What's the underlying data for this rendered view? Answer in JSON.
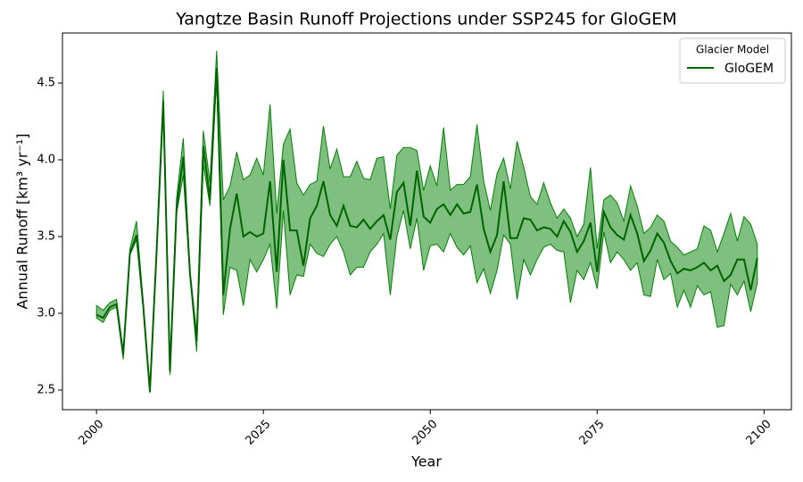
{
  "chart_data": {
    "type": "line",
    "title": "Yangtze Basin Runoff Projections under SSP245 for GloGEM",
    "x_label": "Year",
    "y_label": "Annual Runoff [km³ yr⁻¹]",
    "legend_title": "Glacier Model",
    "legend_position": "upper right",
    "xlim": [
      1994.9,
      2104.1
    ],
    "ylim": [
      2.372,
      4.826
    ],
    "xticks": [
      2000,
      2025,
      2050,
      2075,
      2100
    ],
    "yticks": [
      2.5,
      {
        "value": 3,
        "label": "3.0"
      },
      3.5,
      {
        "value": 4,
        "label": "4.0"
      },
      4.5
    ],
    "grid": false,
    "band_alpha": 0.5,
    "x": [
      2000,
      2001,
      2002,
      2003,
      2004,
      2005,
      2006,
      2007,
      2008,
      2009,
      2010,
      2011,
      2012,
      2013,
      2014,
      2015,
      2016,
      2017,
      2018,
      2019,
      2020,
      2021,
      2022,
      2023,
      2024,
      2025,
      2026,
      2027,
      2028,
      2029,
      2030,
      2031,
      2032,
      2033,
      2034,
      2035,
      2036,
      2037,
      2038,
      2039,
      2040,
      2041,
      2042,
      2043,
      2044,
      2045,
      2046,
      2047,
      2048,
      2049,
      2050,
      2051,
      2052,
      2053,
      2054,
      2055,
      2056,
      2057,
      2058,
      2059,
      2060,
      2061,
      2062,
      2063,
      2064,
      2065,
      2066,
      2067,
      2068,
      2069,
      2070,
      2071,
      2072,
      2073,
      2074,
      2075,
      2076,
      2077,
      2078,
      2079,
      2080,
      2081,
      2082,
      2083,
      2084,
      2085,
      2086,
      2087,
      2088,
      2089,
      2090,
      2091,
      2092,
      2093,
      2094,
      2095,
      2096,
      2097,
      2098,
      2099
    ],
    "series": [
      {
        "name": "GloGEM",
        "color": "#006400",
        "band_color": "#008000",
        "values": [
          2.99,
          2.97,
          3.04,
          3.06,
          2.73,
          3.39,
          3.51,
          3.05,
          2.49,
          3.4,
          4.38,
          2.62,
          3.68,
          4.02,
          3.26,
          2.82,
          4.09,
          3.74,
          4.6,
          3.12,
          3.55,
          3.78,
          3.5,
          3.53,
          3.5,
          3.52,
          3.86,
          3.27,
          4.0,
          3.54,
          3.54,
          3.31,
          3.62,
          3.7,
          3.86,
          3.64,
          3.57,
          3.7,
          3.57,
          3.56,
          3.61,
          3.55,
          3.6,
          3.64,
          3.48,
          3.79,
          3.85,
          3.57,
          3.93,
          3.63,
          3.59,
          3.68,
          3.71,
          3.64,
          3.71,
          3.65,
          3.66,
          3.84,
          3.55,
          3.4,
          3.51,
          3.86,
          3.49,
          3.49,
          3.62,
          3.61,
          3.54,
          3.56,
          3.55,
          3.5,
          3.6,
          3.53,
          3.4,
          3.47,
          3.59,
          3.27,
          3.66,
          3.56,
          3.51,
          3.48,
          3.64,
          3.52,
          3.34,
          3.41,
          3.52,
          3.46,
          3.34,
          3.26,
          3.29,
          3.28,
          3.3,
          3.33,
          3.28,
          3.31,
          3.21,
          3.25,
          3.35,
          3.35,
          3.15,
          3.36
        ],
        "lower": [
          2.97,
          2.94,
          3.02,
          3.04,
          2.7,
          3.38,
          3.48,
          3.03,
          2.48,
          3.38,
          4.34,
          2.6,
          3.65,
          3.9,
          3.25,
          2.75,
          3.97,
          3.7,
          4.55,
          2.99,
          3.3,
          3.28,
          3.05,
          3.35,
          3.27,
          3.35,
          3.45,
          3.03,
          3.67,
          3.12,
          3.25,
          3.24,
          3.45,
          3.39,
          3.37,
          3.45,
          3.5,
          3.4,
          3.25,
          3.3,
          3.3,
          3.4,
          3.45,
          3.52,
          3.12,
          3.5,
          3.67,
          3.42,
          3.62,
          3.28,
          3.44,
          3.45,
          3.4,
          3.52,
          3.43,
          3.38,
          3.44,
          3.2,
          3.29,
          3.13,
          3.28,
          3.51,
          3.45,
          3.09,
          3.35,
          3.25,
          3.35,
          3.43,
          3.45,
          3.41,
          3.4,
          3.07,
          3.28,
          3.22,
          3.33,
          3.16,
          3.53,
          3.33,
          3.4,
          3.35,
          3.28,
          3.33,
          3.12,
          3.11,
          3.35,
          3.22,
          3.26,
          3.04,
          3.15,
          3.04,
          3.18,
          3.12,
          3.14,
          2.91,
          2.92,
          3.19,
          3.12,
          3.21,
          3.01,
          3.2
        ],
        "upper": [
          3.05,
          3.02,
          3.07,
          3.09,
          2.75,
          3.42,
          3.6,
          3.08,
          2.5,
          3.42,
          4.45,
          2.65,
          3.75,
          4.14,
          3.28,
          2.87,
          4.19,
          3.85,
          4.71,
          3.74,
          3.83,
          4.05,
          3.87,
          3.9,
          4.01,
          3.9,
          4.36,
          3.65,
          4.1,
          4.2,
          3.85,
          3.77,
          3.84,
          3.86,
          4.22,
          3.94,
          4.07,
          3.89,
          3.89,
          3.99,
          3.88,
          3.87,
          4.01,
          4.02,
          3.68,
          4.03,
          4.08,
          4.08,
          4.06,
          3.8,
          3.96,
          3.83,
          4.21,
          3.8,
          3.84,
          3.84,
          3.89,
          4.23,
          3.86,
          3.67,
          3.91,
          4.01,
          3.81,
          4.12,
          3.95,
          3.76,
          3.71,
          3.85,
          3.72,
          3.62,
          3.68,
          3.62,
          3.5,
          3.58,
          3.95,
          3.42,
          3.74,
          3.77,
          3.72,
          3.6,
          3.83,
          3.7,
          3.52,
          3.56,
          3.64,
          3.6,
          3.47,
          3.43,
          3.38,
          3.4,
          3.42,
          3.57,
          3.54,
          3.4,
          3.52,
          3.65,
          3.47,
          3.63,
          3.58,
          3.45
        ]
      }
    ]
  }
}
